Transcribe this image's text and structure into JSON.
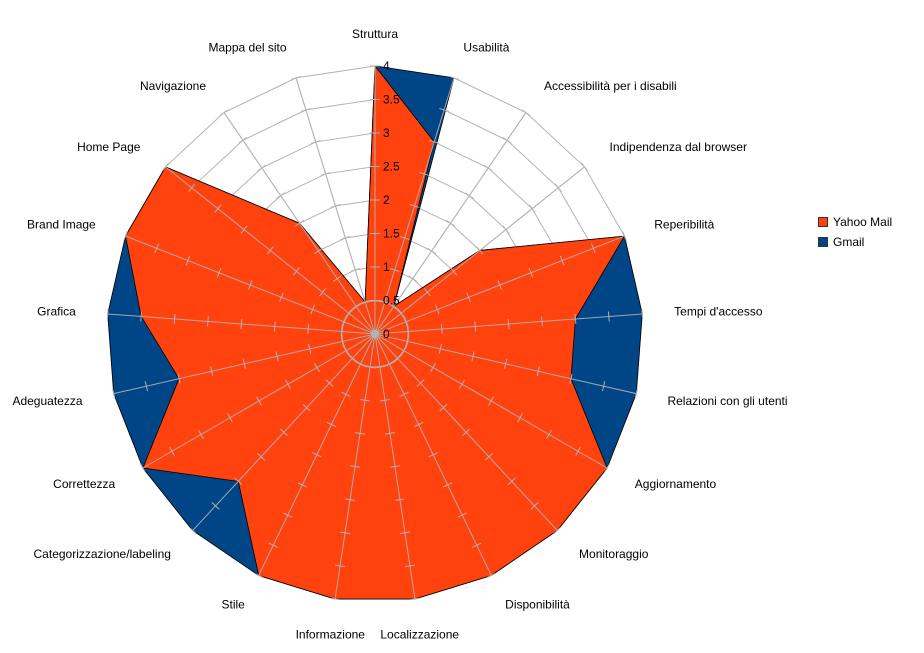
{
  "chart_data": {
    "type": "radar",
    "title": "",
    "categories": [
      "Struttura",
      "Usabilità",
      "Accessibilità per i disabili",
      "Indipendenza dal browser",
      "Reperibilità",
      "Tempi d'accesso",
      "Relazioni con gli utenti",
      "Aggiornamento",
      "Monitoraggio",
      "Disponibilità",
      "Localizzazione",
      "Informazione",
      "Stile",
      "Categorizzazione/labeling",
      "Correttezza",
      "Adeguatezza",
      "Grafica",
      "Brand Image",
      "Home Page",
      "Navigazione",
      "Mappa del sito"
    ],
    "series": [
      {
        "name": "Yahoo Mail",
        "color": "#ff420e",
        "values": [
          4,
          3,
          0.5,
          2,
          4,
          3,
          3,
          4,
          4,
          4,
          4,
          4,
          4,
          3,
          4,
          3,
          3.5,
          4,
          4,
          2,
          0.5
        ]
      },
      {
        "name": "Gmail",
        "color": "#004586",
        "values": [
          4,
          4,
          0.5,
          2,
          4,
          4,
          4,
          4,
          4,
          4,
          4,
          4,
          4,
          4,
          4,
          4,
          4,
          4,
          4,
          2,
          0.5
        ]
      }
    ],
    "ylim": [
      0,
      4
    ],
    "yticks": [
      "0",
      "0.5",
      "1",
      "1.5",
      "2",
      "2.5",
      "3",
      "3.5",
      "4"
    ],
    "grid": true,
    "legend": "right"
  }
}
